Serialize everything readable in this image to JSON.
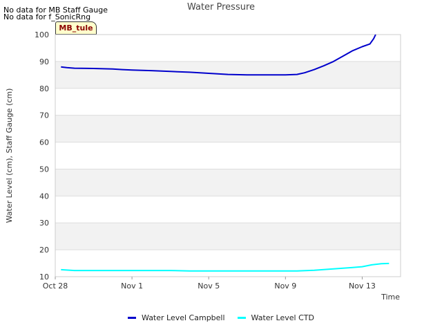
{
  "header": {
    "no_data_1": "No data for MB Staff Gauge",
    "no_data_2": "No data for f_SonicRng",
    "badge": "MB_tule"
  },
  "chart_data": {
    "type": "line",
    "title": "Water Pressure",
    "xlabel": "Time",
    "ylabel": "Water Level (cm), Staff Gauge (cm)",
    "xlim": [
      0,
      18
    ],
    "ylim": [
      10,
      100
    ],
    "x_ticks": [
      {
        "x": 0,
        "label": "Oct 28"
      },
      {
        "x": 4,
        "label": "Nov 1"
      },
      {
        "x": 8,
        "label": "Nov 5"
      },
      {
        "x": 12,
        "label": "Nov 9"
      },
      {
        "x": 16,
        "label": "Nov 13"
      }
    ],
    "y_ticks": [
      10,
      20,
      30,
      40,
      50,
      60,
      70,
      80,
      90,
      100
    ],
    "grid": true,
    "legend": "bottom-center",
    "series": [
      {
        "name": "Water Level Campbell",
        "color": "#0000cc",
        "x": [
          0.3,
          0.6,
          1.0,
          2.0,
          3.0,
          3.5,
          4.0,
          5.0,
          6.0,
          7.0,
          8.0,
          9.0,
          10.0,
          11.0,
          12.0,
          12.6,
          13.0,
          13.5,
          14.0,
          14.5,
          15.0,
          15.5,
          16.0,
          16.4,
          16.6,
          16.7
        ],
        "y": [
          88.0,
          87.7,
          87.5,
          87.4,
          87.2,
          87.0,
          86.8,
          86.6,
          86.3,
          86.0,
          85.6,
          85.2,
          85.0,
          85.0,
          85.0,
          85.2,
          85.8,
          87.0,
          88.4,
          90.0,
          92.0,
          94.0,
          95.5,
          96.5,
          98.5,
          100.0
        ]
      },
      {
        "name": "Water Level CTD",
        "color": "#00ffff",
        "x": [
          0.3,
          1.0,
          2.0,
          3.0,
          4.0,
          5.0,
          6.0,
          7.0,
          8.0,
          9.0,
          10.0,
          11.0,
          12.0,
          12.6,
          13.5,
          14.5,
          15.5,
          16.0,
          16.5,
          17.0,
          17.4
        ],
        "y": [
          12.6,
          12.3,
          12.3,
          12.3,
          12.3,
          12.3,
          12.3,
          12.1,
          12.1,
          12.1,
          12.1,
          12.1,
          12.1,
          12.1,
          12.4,
          12.9,
          13.4,
          13.7,
          14.4,
          14.8,
          14.9
        ]
      }
    ]
  }
}
